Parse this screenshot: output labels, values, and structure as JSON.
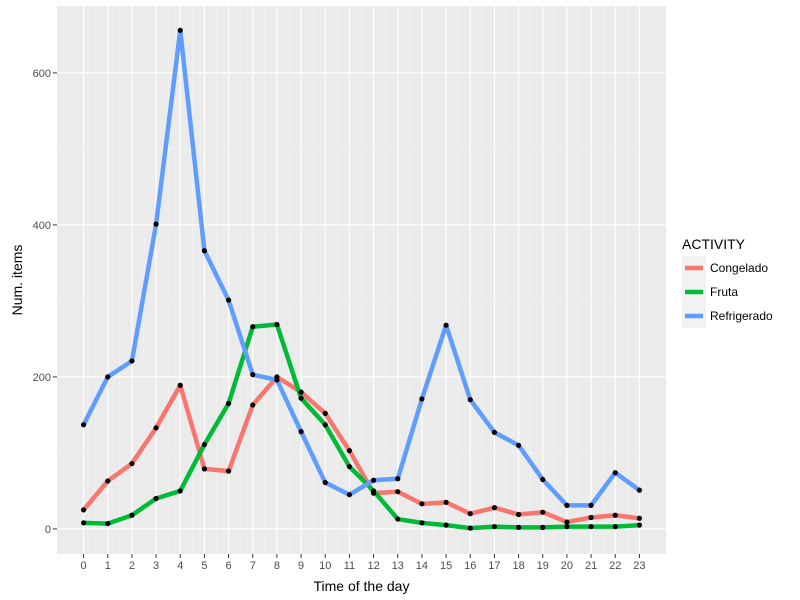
{
  "chart_data": {
    "type": "line",
    "xlabel": "Time of the day",
    "ylabel": "Num. items",
    "x": [
      0,
      1,
      2,
      3,
      4,
      5,
      6,
      7,
      8,
      9,
      10,
      11,
      12,
      13,
      14,
      15,
      16,
      17,
      18,
      19,
      20,
      21,
      22,
      23
    ],
    "x_tick_labels": [
      "0",
      "1",
      "2",
      "3",
      "4",
      "5",
      "6",
      "7",
      "8",
      "9",
      "10",
      "11",
      "12",
      "13",
      "14",
      "15",
      "16",
      "17",
      "18",
      "19",
      "20",
      "21",
      "22",
      "23"
    ],
    "y_ticks": [
      0,
      200,
      400,
      600
    ],
    "y_tick_labels": [
      "0",
      "200",
      "400",
      "600"
    ],
    "xlim": [
      -1.1,
      24.1
    ],
    "ylim": [
      -33,
      688
    ],
    "grid": true,
    "legend": {
      "title": "ACTIVITY",
      "position": "right"
    },
    "series": [
      {
        "name": "Congelado",
        "color": "#F8766D",
        "values": [
          25,
          63,
          86,
          133,
          189,
          79,
          76,
          163,
          200,
          180,
          152,
          103,
          47,
          49,
          33,
          35,
          20,
          28,
          19,
          22,
          9,
          15,
          18,
          14
        ]
      },
      {
        "name": "Fruta",
        "color": "#00BA38",
        "values": [
          8,
          7,
          18,
          40,
          50,
          111,
          165,
          266,
          269,
          172,
          137,
          82,
          50,
          13,
          8,
          5,
          1,
          3,
          2,
          2,
          3,
          3,
          3,
          5
        ]
      },
      {
        "name": "Refrigerado",
        "color": "#619CFF",
        "values": [
          137,
          200,
          221,
          401,
          656,
          366,
          301,
          203,
          196,
          128,
          61,
          45,
          64,
          66,
          171,
          268,
          170,
          127,
          110,
          65,
          31,
          31,
          74,
          51
        ]
      }
    ]
  }
}
